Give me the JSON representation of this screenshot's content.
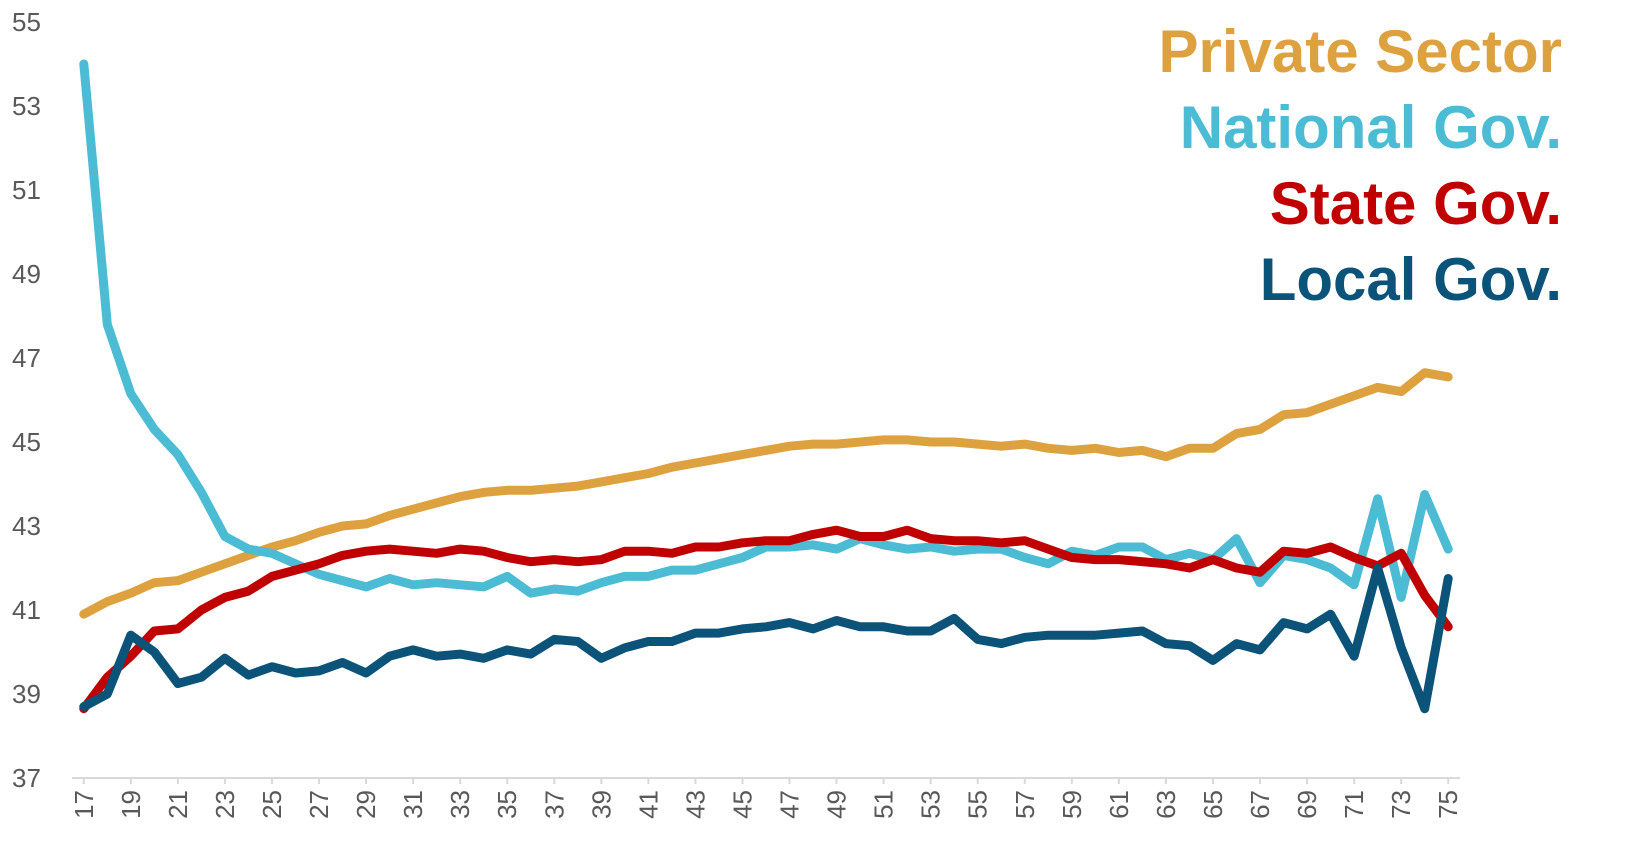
{
  "chart_data": {
    "type": "line",
    "x": [
      17,
      18,
      19,
      20,
      21,
      22,
      23,
      24,
      25,
      26,
      27,
      28,
      29,
      30,
      31,
      32,
      33,
      34,
      35,
      36,
      37,
      38,
      39,
      40,
      41,
      42,
      43,
      44,
      45,
      46,
      47,
      48,
      49,
      50,
      51,
      52,
      53,
      54,
      55,
      56,
      57,
      58,
      59,
      60,
      61,
      62,
      63,
      64,
      65,
      66,
      67,
      68,
      69,
      70,
      71,
      72,
      73,
      74,
      75
    ],
    "xlim": [
      16.5,
      75.5
    ],
    "xticks": [
      17,
      19,
      21,
      23,
      25,
      27,
      29,
      31,
      33,
      35,
      37,
      39,
      41,
      43,
      45,
      47,
      49,
      51,
      53,
      55,
      57,
      59,
      61,
      63,
      65,
      67,
      69,
      71,
      73,
      75
    ],
    "ylim": [
      37,
      55
    ],
    "yticks": [
      37,
      39,
      41,
      43,
      45,
      47,
      49,
      51,
      53,
      55
    ],
    "series": [
      {
        "name": "Private Sector",
        "color": "#dea13f",
        "values": [
          40.9,
          41.2,
          41.4,
          41.65,
          41.7,
          41.9,
          42.1,
          42.3,
          42.5,
          42.65,
          42.85,
          43.0,
          43.05,
          43.25,
          43.4,
          43.55,
          43.7,
          43.8,
          43.85,
          43.85,
          43.9,
          43.95,
          44.05,
          44.15,
          44.25,
          44.4,
          44.5,
          44.6,
          44.7,
          44.8,
          44.9,
          44.95,
          44.95,
          45.0,
          45.05,
          45.05,
          45.0,
          45.0,
          44.95,
          44.9,
          44.95,
          44.85,
          44.8,
          44.85,
          44.75,
          44.8,
          44.65,
          44.85,
          44.85,
          45.2,
          45.3,
          45.65,
          45.7,
          45.9,
          46.1,
          46.3,
          46.2,
          46.65,
          46.55
        ]
      },
      {
        "name": "National Gov.",
        "color": "#4bbcd4",
        "values": [
          54.0,
          47.8,
          46.15,
          45.3,
          44.7,
          43.8,
          42.75,
          42.45,
          42.35,
          42.1,
          41.85,
          41.7,
          41.55,
          41.75,
          41.6,
          41.65,
          41.6,
          41.55,
          41.8,
          41.4,
          41.5,
          41.45,
          41.65,
          41.8,
          41.8,
          41.95,
          41.95,
          42.1,
          42.25,
          42.5,
          42.5,
          42.55,
          42.45,
          42.7,
          42.55,
          42.45,
          42.5,
          42.4,
          42.45,
          42.45,
          42.25,
          42.1,
          42.4,
          42.3,
          42.5,
          42.5,
          42.2,
          42.35,
          42.2,
          42.7,
          41.65,
          42.3,
          42.2,
          42.0,
          41.6,
          43.65,
          41.3,
          43.75,
          42.45
        ]
      },
      {
        "name": "State Gov.",
        "color": "#c00000",
        "values": [
          38.65,
          39.4,
          39.9,
          40.5,
          40.55,
          41.0,
          41.3,
          41.45,
          41.8,
          41.95,
          42.1,
          42.3,
          42.4,
          42.45,
          42.4,
          42.35,
          42.45,
          42.4,
          42.25,
          42.15,
          42.2,
          42.15,
          42.2,
          42.4,
          42.4,
          42.35,
          42.5,
          42.5,
          42.6,
          42.65,
          42.65,
          42.8,
          42.9,
          42.75,
          42.75,
          42.9,
          42.7,
          42.65,
          42.65,
          42.6,
          42.65,
          42.45,
          42.25,
          42.2,
          42.2,
          42.15,
          42.1,
          42.0,
          42.2,
          42.0,
          41.9,
          42.4,
          42.35,
          42.5,
          42.25,
          42.05,
          42.35,
          41.35,
          40.6
        ]
      },
      {
        "name": "Local Gov.",
        "color": "#0b5379",
        "values": [
          38.7,
          39.0,
          40.4,
          40.0,
          39.25,
          39.4,
          39.85,
          39.45,
          39.65,
          39.5,
          39.55,
          39.75,
          39.5,
          39.9,
          40.05,
          39.9,
          39.95,
          39.85,
          40.05,
          39.95,
          40.3,
          40.25,
          39.85,
          40.1,
          40.25,
          40.25,
          40.45,
          40.45,
          40.55,
          40.6,
          40.7,
          40.55,
          40.75,
          40.6,
          40.6,
          40.5,
          40.5,
          40.8,
          40.3,
          40.2,
          40.35,
          40.4,
          40.4,
          40.4,
          40.45,
          40.5,
          40.2,
          40.15,
          39.8,
          40.2,
          40.05,
          40.7,
          40.55,
          40.9,
          39.9,
          42.0,
          40.1,
          38.65,
          41.75
        ]
      }
    ]
  }
}
